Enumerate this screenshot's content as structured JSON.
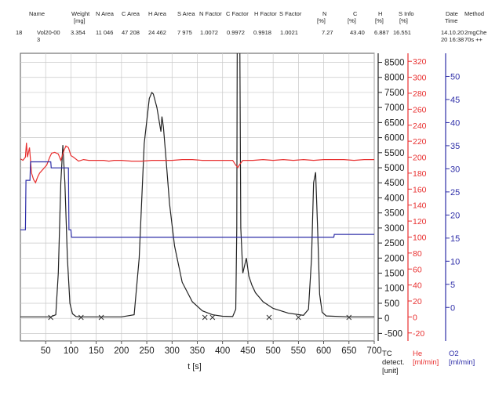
{
  "table": {
    "headers": [
      {
        "text": "Name",
        "x": 37
      },
      {
        "text": "Weight",
        "x": 91
      },
      {
        "text": "N Area",
        "x": 122
      },
      {
        "text": "C Area",
        "x": 155
      },
      {
        "text": "H Area",
        "x": 189
      },
      {
        "text": "S Area",
        "x": 226
      },
      {
        "text": "N Factor",
        "x": 254
      },
      {
        "text": "C Factor",
        "x": 288
      },
      {
        "text": "H Factor",
        "x": 324
      },
      {
        "text": "S Factor",
        "x": 356
      },
      {
        "text": "N",
        "x": 411
      },
      {
        "text": "C",
        "x": 450
      },
      {
        "text": "H",
        "x": 482
      },
      {
        "text": "S Info",
        "x": 508
      },
      {
        "text": "Date",
        "x": 568
      },
      {
        "text": "Method",
        "x": 592
      }
    ],
    "units": [
      {
        "text": "[mg]",
        "x": 94
      },
      {
        "text": "[%]",
        "x": 404
      },
      {
        "text": "[%]",
        "x": 443
      },
      {
        "text": "[%]",
        "x": 478
      },
      {
        "text": "[%]",
        "x": 509
      },
      {
        "text": "Time",
        "x": 567
      }
    ],
    "row": [
      {
        "text": "18",
        "x": 20
      },
      {
        "text": "Vol20-00",
        "x": 47
      },
      {
        "text": "3.354",
        "x": 90
      },
      {
        "text": "11 046",
        "x": 122
      },
      {
        "text": "47 208",
        "x": 155
      },
      {
        "text": "24 462",
        "x": 189
      },
      {
        "text": "7 975",
        "x": 226
      },
      {
        "text": "1.0072",
        "x": 255
      },
      {
        "text": "0.9972",
        "x": 289
      },
      {
        "text": "0.9918",
        "x": 323
      },
      {
        "text": "1.0021",
        "x": 357
      },
      {
        "text": "7.27",
        "x": 410
      },
      {
        "text": "43.40",
        "x": 446
      },
      {
        "text": "6.887",
        "x": 477
      },
      {
        "text": "16.551",
        "x": 501
      },
      {
        "text": "14.10.20",
        "x": 562
      },
      {
        "text": "2mgChe",
        "x": 592
      }
    ],
    "row2": [
      {
        "text": "3",
        "x": 47
      },
      {
        "text": "20 16:38",
        "x": 562
      },
      {
        "text": "70s ++",
        "x": 592
      }
    ]
  },
  "chart_data": {
    "type": "line",
    "xlabel": "t [s]",
    "xlim": [
      0,
      700
    ],
    "x_ticks": [
      50,
      100,
      150,
      200,
      250,
      300,
      350,
      400,
      450,
      500,
      550,
      600,
      650,
      700
    ],
    "colors": {
      "tcd": "#222222",
      "he": "#e83030",
      "o2": "#2e2ea8"
    },
    "axes": [
      {
        "key": "tcd",
        "label": "TC detect. [unit]",
        "ticks": [
          -500,
          0,
          500,
          1000,
          1500,
          2000,
          2500,
          3000,
          3500,
          4000,
          4500,
          5000,
          5500,
          6000,
          6500,
          7000,
          7500,
          8000,
          8500
        ],
        "range": [
          -750,
          8800
        ]
      },
      {
        "key": "he",
        "label": "He [ml/min]",
        "ticks": [
          -20,
          0,
          20,
          40,
          60,
          80,
          100,
          120,
          140,
          160,
          180,
          200,
          220,
          240,
          260,
          280,
          300,
          320
        ],
        "range": [
          -30,
          330
        ]
      },
      {
        "key": "o2",
        "label": "O2 [ml/min]",
        "ticks": [
          0,
          5,
          10,
          15,
          20,
          25,
          30,
          35,
          40,
          45,
          50
        ],
        "range": [
          -7.25,
          55
        ]
      }
    ],
    "series": [
      {
        "axis": "tcd",
        "x": [
          0,
          60,
          70,
          75,
          80,
          84,
          88,
          93,
          98,
          103,
          110,
          120,
          150,
          200,
          225,
          235,
          245,
          255,
          260,
          263,
          270,
          278,
          280,
          283,
          288,
          295,
          305,
          320,
          340,
          360,
          380,
          400,
          420,
          426,
          428,
          429,
          431,
          432,
          434,
          436,
          440,
          447,
          452,
          458,
          465,
          480,
          500,
          530,
          560,
          570,
          576,
          580,
          584,
          588,
          592,
          597,
          605,
          650,
          700
        ],
        "y": [
          50,
          50,
          120,
          1500,
          4500,
          5750,
          4500,
          2000,
          500,
          150,
          60,
          50,
          50,
          50,
          120,
          2000,
          5800,
          7300,
          7500,
          7450,
          7000,
          6200,
          6700,
          6350,
          5300,
          3800,
          2400,
          1200,
          550,
          250,
          120,
          70,
          60,
          300,
          3000,
          9500,
          9500,
          9500,
          9500,
          3000,
          1500,
          2000,
          1400,
          1100,
          850,
          550,
          330,
          170,
          100,
          300,
          2000,
          4500,
          4850,
          3000,
          800,
          200,
          80,
          50,
          50
        ]
      },
      {
        "axis": "he",
        "x": [
          0,
          5,
          10,
          12,
          14,
          18,
          22,
          26,
          30,
          34,
          38,
          45,
          52,
          58,
          62,
          68,
          75,
          80,
          86,
          90,
          95,
          100,
          105,
          115,
          125,
          135,
          145,
          155,
          165,
          175,
          185,
          200,
          220,
          240,
          260,
          280,
          300,
          320,
          340,
          360,
          380,
          400,
          420,
          425,
          430,
          435,
          440,
          460,
          480,
          500,
          520,
          540,
          560,
          580,
          600,
          620,
          640,
          660,
          680,
          700
        ],
        "y": [
          198,
          196,
          200,
          218,
          200,
          212,
          180,
          172,
          168,
          175,
          180,
          185,
          190,
          200,
          205,
          206,
          204,
          196,
          208,
          214,
          212,
          202,
          200,
          195,
          197,
          196,
          196,
          196,
          196,
          195,
          196,
          196,
          195,
          195,
          196,
          196,
          196,
          197,
          197,
          196,
          196,
          196,
          196,
          191,
          187,
          192,
          196,
          196,
          197,
          196,
          197,
          196,
          197,
          196,
          197,
          197,
          197,
          196,
          197,
          197
        ]
      },
      {
        "axis": "o2",
        "x": [
          0,
          10,
          11,
          19,
          20,
          60,
          61,
          95,
          96,
          100,
          101,
          620,
          621,
          700
        ],
        "y": [
          16.8,
          16.8,
          27.5,
          27.5,
          31.5,
          31.5,
          30.2,
          30.2,
          16.8,
          16.8,
          15.2,
          15.2,
          15.8,
          15.8
        ]
      }
    ],
    "markers": {
      "axis": "tcd",
      "x": [
        60,
        120,
        160,
        365,
        380,
        492,
        550,
        650
      ],
      "y": [
        30,
        30,
        30,
        30,
        30,
        30,
        30,
        30
      ]
    }
  }
}
